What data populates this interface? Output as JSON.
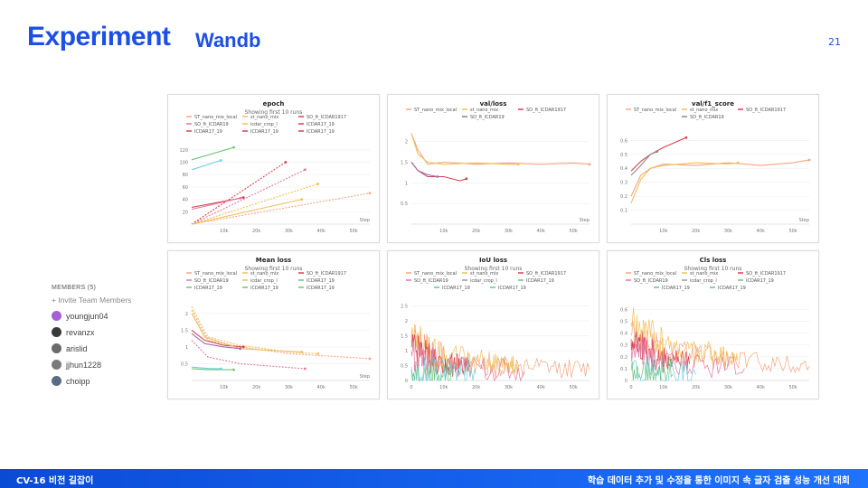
{
  "slide": {
    "title": "Experiment",
    "subtitle": "Wandb",
    "page_number": "21"
  },
  "members": {
    "header": "MEMBERS (5)",
    "invite": "+ Invite Team Members",
    "list": [
      {
        "name": "youngjun04",
        "color": "#a560d8"
      },
      {
        "name": "revanzx",
        "color": "#3a3a3a"
      },
      {
        "name": "arislid",
        "color": "#6b6b6b"
      },
      {
        "name": "jjhun1228",
        "color": "#7a7a7a"
      },
      {
        "name": "choipp",
        "color": "#5b6b85"
      }
    ]
  },
  "footer": {
    "left": "CV-16 비전 길잡이",
    "right": "학습 데이터 추가 및 수정을 통한 이미지 속 글자 검출 성능 개선 대회"
  },
  "chart_data": [
    {
      "type": "line",
      "title": "epoch",
      "subtitle": "Showing first 10 runs",
      "xlabel": "Step",
      "x_ticks": [
        "10k",
        "20k",
        "30k",
        "40k",
        "50k"
      ],
      "y_ticks": [
        "20",
        "40",
        "60",
        "80",
        "100",
        "120"
      ],
      "xlim": [
        0,
        55000
      ],
      "ylim": [
        0,
        130
      ],
      "legend": [
        "ST_nano_mix_local",
        "st_nano_mix",
        "SO_ft_ICDAR1917",
        "SO_ft_ICDAR19",
        "icdar_crop_l",
        "ICDAR17_19",
        "ICDAR17_19",
        "ICDAR17_19",
        "ICDAR17_19"
      ],
      "series": [
        {
          "name": "ST_nano_mix_local",
          "color": "#f4a582",
          "dash": true,
          "points": [
            [
              0,
              0
            ],
            [
              55000,
              50
            ]
          ]
        },
        {
          "name": "st_nano_mix",
          "color": "#f0c05a",
          "dash": true,
          "points": [
            [
              0,
              0
            ],
            [
              39000,
              65
            ]
          ]
        },
        {
          "name": "SO_ft_ICDAR1917",
          "color": "#d6404e",
          "dash": true,
          "points": [
            [
              0,
              0
            ],
            [
              29000,
              100
            ]
          ]
        },
        {
          "name": "SO_ft_ICDAR19",
          "color": "#e377a2",
          "dash": true,
          "points": [
            [
              0,
              0
            ],
            [
              35000,
              88
            ]
          ]
        },
        {
          "name": "icdar_crop_l",
          "color": "#f0c05a",
          "dash": false,
          "points": [
            [
              0,
              0
            ],
            [
              34000,
              40
            ]
          ]
        },
        {
          "name": "ICDAR17_19",
          "color": "#d6404e",
          "dash": false,
          "points": [
            [
              0,
              27
            ],
            [
              16000,
              43
            ]
          ]
        },
        {
          "name": "ICDAR17_19",
          "color": "#6fc27b",
          "dash": false,
          "points": [
            [
              0,
              104
            ],
            [
              13000,
              124
            ]
          ]
        },
        {
          "name": "ICDAR17_19",
          "color": "#6ad1e0",
          "dash": false,
          "points": [
            [
              0,
              88
            ],
            [
              9000,
              103
            ]
          ]
        },
        {
          "name": "ICDAR17_19",
          "color": "#e377a2",
          "dash": false,
          "points": [
            [
              0,
              24
            ],
            [
              15000,
              42
            ]
          ]
        }
      ]
    },
    {
      "type": "line",
      "title": "val/loss",
      "xlabel": "Step",
      "x_ticks": [
        "10k",
        "20k",
        "30k",
        "40k",
        "50k"
      ],
      "y_ticks": [
        "0.5",
        "1",
        "1.5",
        "2"
      ],
      "xlim": [
        0,
        55000
      ],
      "ylim": [
        0,
        2.3
      ],
      "legend": [
        "ST_nano_mix_local",
        "st_nano_mix",
        "SO_ft_ICDAR1917",
        "SO_ft_ICDAR19"
      ],
      "series": [
        {
          "name": "ST_nano_mix_local",
          "color": "#f4a582",
          "dash": false,
          "points": [
            [
              0,
              2.2
            ],
            [
              2000,
              1.8
            ],
            [
              5000,
              1.45
            ],
            [
              10000,
              1.5
            ],
            [
              20000,
              1.45
            ],
            [
              30000,
              1.48
            ],
            [
              40000,
              1.45
            ],
            [
              50000,
              1.48
            ],
            [
              55000,
              1.45
            ]
          ]
        },
        {
          "name": "st_nano_mix",
          "color": "#f0c05a",
          "dash": false,
          "points": [
            [
              0,
              2.2
            ],
            [
              2000,
              1.7
            ],
            [
              5000,
              1.5
            ],
            [
              10000,
              1.45
            ],
            [
              20000,
              1.48
            ],
            [
              30000,
              1.45
            ],
            [
              33000,
              1.45
            ]
          ]
        },
        {
          "name": "SO_ft_ICDAR1917",
          "color": "#d6404e",
          "dash": false,
          "points": [
            [
              0,
              1.5
            ],
            [
              2000,
              1.3
            ],
            [
              5000,
              1.15
            ],
            [
              10000,
              1.15
            ],
            [
              15000,
              1.05
            ],
            [
              17000,
              1.1
            ]
          ]
        },
        {
          "name": "SO_ft_ICDAR19",
          "color": "#9b6fa8",
          "dash": false,
          "points": [
            [
              0,
              1.5
            ],
            [
              2000,
              1.3
            ],
            [
              5000,
              1.2
            ],
            [
              8000,
              1.15
            ]
          ]
        }
      ]
    },
    {
      "type": "line",
      "title": "val/f1_score",
      "xlabel": "Step",
      "x_ticks": [
        "10k",
        "20k",
        "30k",
        "40k",
        "50k"
      ],
      "y_ticks": [
        "0.1",
        "0.2",
        "0.3",
        "0.4",
        "0.5",
        "0.6"
      ],
      "xlim": [
        0,
        55000
      ],
      "ylim": [
        0,
        0.68
      ],
      "legend": [
        "ST_nano_mix_local",
        "st_nano_mix",
        "SO_ft_ICDAR1917",
        "SO_ft_ICDAR19"
      ],
      "series": [
        {
          "name": "ST_nano_mix_local",
          "color": "#f4a582",
          "dash": false,
          "points": [
            [
              0,
              0.2
            ],
            [
              3000,
              0.35
            ],
            [
              6000,
              0.4
            ],
            [
              10000,
              0.43
            ],
            [
              20000,
              0.42
            ],
            [
              30000,
              0.44
            ],
            [
              40000,
              0.42
            ],
            [
              50000,
              0.44
            ],
            [
              55000,
              0.46
            ]
          ]
        },
        {
          "name": "st_nano_mix",
          "color": "#f0c05a",
          "dash": false,
          "points": [
            [
              0,
              0.15
            ],
            [
              3000,
              0.32
            ],
            [
              6000,
              0.4
            ],
            [
              10000,
              0.42
            ],
            [
              20000,
              0.44
            ],
            [
              30000,
              0.43
            ],
            [
              33000,
              0.44
            ]
          ]
        },
        {
          "name": "SO_ft_ICDAR1917",
          "color": "#d6404e",
          "dash": false,
          "points": [
            [
              0,
              0.38
            ],
            [
              3000,
              0.45
            ],
            [
              6000,
              0.5
            ],
            [
              10000,
              0.55
            ],
            [
              15000,
              0.6
            ],
            [
              17000,
              0.62
            ]
          ]
        },
        {
          "name": "SO_ft_ICDAR19",
          "color": "#8a8a8a",
          "dash": false,
          "points": [
            [
              0,
              0.35
            ],
            [
              3000,
              0.42
            ],
            [
              6000,
              0.5
            ],
            [
              8000,
              0.52
            ]
          ]
        }
      ]
    },
    {
      "type": "line",
      "title": "Mean loss",
      "subtitle": "Showing first 10 runs",
      "xlabel": "Step",
      "x_ticks": [
        "10k",
        "20k",
        "30k",
        "40k",
        "50k"
      ],
      "y_ticks": [
        "0.5",
        "1",
        "1.5",
        "2"
      ],
      "xlim": [
        0,
        55000
      ],
      "ylim": [
        0,
        2.4
      ],
      "legend": [
        "ST_nano_mix_local",
        "st_nano_mix",
        "SO_ft_ICDAR1917",
        "SO_ft_ICDAR19",
        "icdar_crop_l",
        "ICDAR17_19",
        "ICDAR17_19",
        "ICDAR17_19",
        "ICDAR17_19"
      ],
      "series": [
        {
          "name": "ST_nano_mix_local",
          "color": "#f4a582",
          "dash": true,
          "points": [
            [
              0,
              2.1
            ],
            [
              5000,
              1.2
            ],
            [
              15000,
              1.0
            ],
            [
              30000,
              0.8
            ],
            [
              55000,
              0.65
            ]
          ]
        },
        {
          "name": "st_nano_mix",
          "color": "#f0c05a",
          "dash": true,
          "points": [
            [
              0,
              2.2
            ],
            [
              5000,
              1.3
            ],
            [
              15000,
              1.05
            ],
            [
              30000,
              0.85
            ],
            [
              39000,
              0.8
            ]
          ]
        },
        {
          "name": "SO_ft_ICDAR1917",
          "color": "#d6404e",
          "dash": false,
          "points": [
            [
              0,
              1.5
            ],
            [
              4000,
              1.2
            ],
            [
              10000,
              1.05
            ],
            [
              16000,
              1.0
            ]
          ]
        },
        {
          "name": "SO_ft_ICDAR19",
          "color": "#e377a2",
          "dash": true,
          "points": [
            [
              0,
              1.2
            ],
            [
              5000,
              0.7
            ],
            [
              15000,
              0.5
            ],
            [
              35000,
              0.35
            ]
          ]
        },
        {
          "name": "icdar_crop_l",
          "color": "#f0c05a",
          "dash": false,
          "points": [
            [
              0,
              2.0
            ],
            [
              4000,
              1.3
            ],
            [
              15000,
              0.95
            ],
            [
              34000,
              0.85
            ]
          ]
        },
        {
          "name": "ICDAR17_19",
          "color": "#6fc27b",
          "dash": false,
          "points": [
            [
              0,
              0.35
            ],
            [
              5000,
              0.32
            ],
            [
              13000,
              0.32
            ]
          ]
        },
        {
          "name": "ICDAR17_19",
          "color": "#6ad1e0",
          "dash": false,
          "points": [
            [
              0,
              0.4
            ],
            [
              5000,
              0.36
            ],
            [
              9000,
              0.35
            ]
          ]
        },
        {
          "name": "ICDAR17_19",
          "color": "#9b6fa8",
          "dash": false,
          "points": [
            [
              0,
              1.4
            ],
            [
              4000,
              1.1
            ],
            [
              10000,
              1.0
            ],
            [
              15000,
              0.95
            ]
          ]
        }
      ]
    },
    {
      "type": "line",
      "title": "IoU loss",
      "subtitle": "Showing first 10 runs",
      "x_ticks": [
        "0",
        "10k",
        "20k",
        "30k",
        "40k",
        "50k"
      ],
      "y_ticks": [
        "0",
        "0.5",
        "1",
        "1.5",
        "2",
        "2.5"
      ],
      "xlim": [
        0,
        55000
      ],
      "ylim": [
        0,
        2.7
      ],
      "legend": [
        "ST_nano_mix_local",
        "st_nano_mix",
        "SO_ft_ICDAR1917",
        "SO_ft_ICDAR19",
        "icdar_crop_l",
        "ICDAR17_19",
        "ICDAR17_19",
        "ICDAR17_19"
      ],
      "series": [
        {
          "name": "ST_nano_mix_local",
          "color": "#f4a582",
          "dash": false,
          "noisy": true,
          "points": [
            [
              0,
              1.3
            ],
            [
              10000,
              0.7
            ],
            [
              30000,
              0.45
            ],
            [
              55000,
              0.35
            ]
          ]
        },
        {
          "name": "st_nano_mix",
          "color": "#f0c05a",
          "dash": false,
          "noisy": true,
          "points": [
            [
              0,
              1.5
            ],
            [
              10000,
              0.8
            ],
            [
              25000,
              0.6
            ],
            [
              33000,
              0.5
            ]
          ]
        },
        {
          "name": "SO_ft_ICDAR1917",
          "color": "#d6404e",
          "dash": false,
          "noisy": true,
          "points": [
            [
              0,
              1.1
            ],
            [
              8000,
              0.6
            ],
            [
              18000,
              0.45
            ]
          ]
        },
        {
          "name": "SO_ft_ICDAR19",
          "color": "#e377a2",
          "dash": false,
          "noisy": true,
          "points": [
            [
              0,
              0.9
            ],
            [
              8000,
              0.5
            ],
            [
              35000,
              0.3
            ]
          ]
        },
        {
          "name": "ICDAR17_19",
          "color": "#6fc27b",
          "dash": false,
          "noisy": true,
          "points": [
            [
              0,
              0.25
            ],
            [
              13000,
              0.2
            ]
          ]
        },
        {
          "name": "ICDAR17_19",
          "color": "#6ad1e0",
          "dash": false,
          "noisy": true,
          "points": [
            [
              0,
              0.3
            ],
            [
              20000,
              0.22
            ]
          ]
        }
      ]
    },
    {
      "type": "line",
      "title": "Cls loss",
      "subtitle": "Showing first 10 runs",
      "x_ticks": [
        "0",
        "10k",
        "20k",
        "30k",
        "40k",
        "50k"
      ],
      "y_ticks": [
        "0",
        "0.1",
        "0.2",
        "0.3",
        "0.4",
        "0.5",
        "0.6"
      ],
      "xlim": [
        0,
        55000
      ],
      "ylim": [
        0,
        0.68
      ],
      "legend": [
        "ST_nano_mix_local",
        "st_nano_mix",
        "SO_ft_ICDAR1917",
        "SO_ft_ICDAR19",
        "icdar_crop_l",
        "ICDAR17_19",
        "ICDAR17_19",
        "ICDAR17_19"
      ],
      "series": [
        {
          "name": "ST_nano_mix_local",
          "color": "#f4a582",
          "dash": false,
          "noisy": true,
          "points": [
            [
              0,
              0.4
            ],
            [
              10000,
              0.25
            ],
            [
              30000,
              0.18
            ],
            [
              55000,
              0.12
            ]
          ]
        },
        {
          "name": "st_nano_mix",
          "color": "#f0c05a",
          "dash": false,
          "noisy": true,
          "points": [
            [
              0,
              0.5
            ],
            [
              10000,
              0.3
            ],
            [
              25000,
              0.22
            ],
            [
              33000,
              0.18
            ]
          ]
        },
        {
          "name": "SO_ft_ICDAR1917",
          "color": "#d6404e",
          "dash": false,
          "noisy": true,
          "points": [
            [
              0,
              0.35
            ],
            [
              8000,
              0.2
            ],
            [
              18000,
              0.14
            ]
          ]
        },
        {
          "name": "SO_ft_ICDAR19",
          "color": "#e377a2",
          "dash": false,
          "noisy": true,
          "points": [
            [
              0,
              0.3
            ],
            [
              8000,
              0.15
            ],
            [
              35000,
              0.1
            ]
          ]
        },
        {
          "name": "ICDAR17_19",
          "color": "#6fc27b",
          "dash": false,
          "noisy": true,
          "points": [
            [
              0,
              0.06
            ],
            [
              13000,
              0.05
            ]
          ]
        },
        {
          "name": "ICDAR17_19",
          "color": "#6ad1e0",
          "dash": false,
          "noisy": true,
          "points": [
            [
              0,
              0.07
            ],
            [
              20000,
              0.05
            ]
          ]
        }
      ]
    }
  ]
}
